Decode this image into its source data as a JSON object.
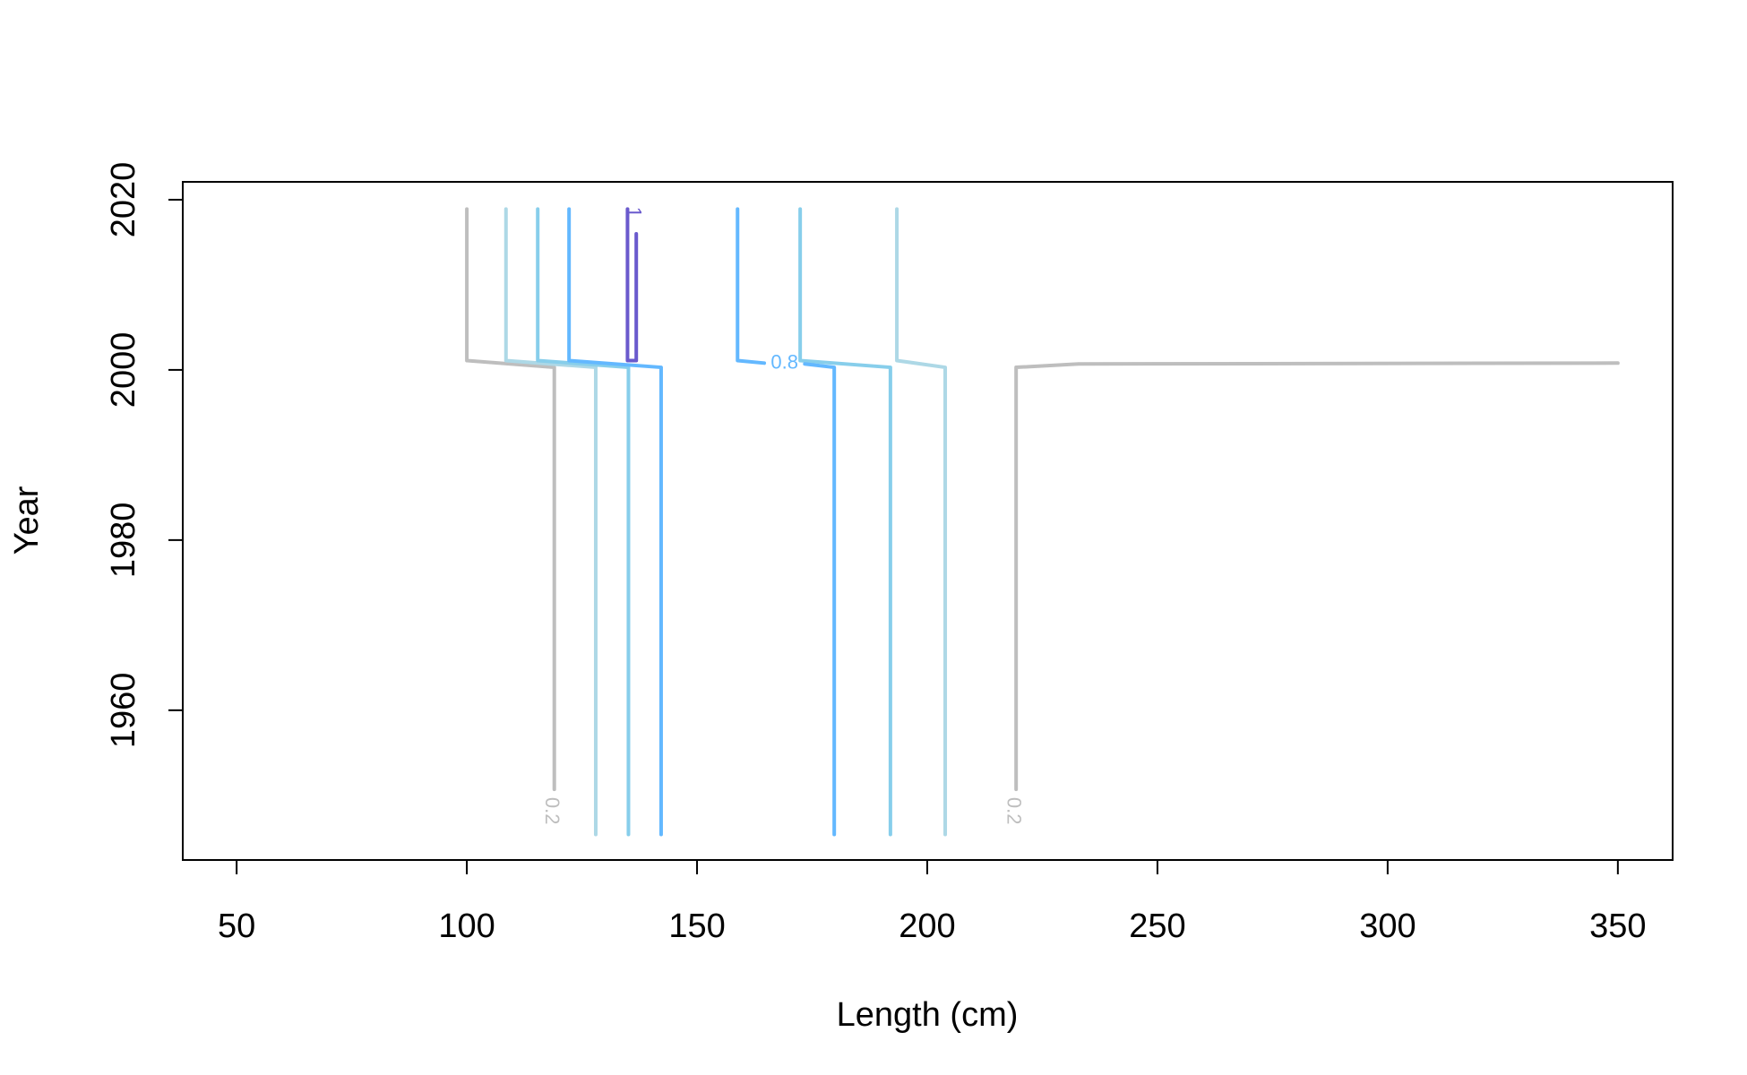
{
  "chart_data": {
    "type": "contour",
    "xlabel": "Length (cm)",
    "ylabel": "Year",
    "xlim": [
      38.3,
      361.9
    ],
    "ylim": [
      1942.4,
      2022.1
    ],
    "xticks": [
      50,
      100,
      150,
      200,
      250,
      300,
      350
    ],
    "yticks": [
      1960,
      1980,
      2000,
      2020
    ],
    "series": [
      {
        "color": "#bebebe",
        "label": "0.2",
        "x": [
          100,
          100,
          119,
          119
        ],
        "values": [
          2018.9,
          2001.1,
          2000.3,
          1950.7
        ]
      },
      {
        "color": "#bebebe",
        "label": "0.2",
        "x": [
          350,
          232.9,
          219.3,
          219.3
        ],
        "values": [
          2000.8,
          2000.7,
          2000.3,
          1950.7
        ]
      },
      {
        "color": "#add8e6",
        "x": [
          108.5,
          108.5,
          128,
          128
        ],
        "values": [
          2018.9,
          2001.1,
          2000.3,
          1945.4
        ]
      },
      {
        "color": "#add8e6",
        "x": [
          193.4,
          193.4,
          203.9,
          203.9
        ],
        "values": [
          2018.9,
          2001.1,
          2000.3,
          1945.4
        ]
      },
      {
        "color": "#87ceeb",
        "x": [
          115.4,
          115.4,
          135.1,
          135.1
        ],
        "values": [
          2018.9,
          2001.1,
          2000.3,
          1945.4
        ]
      },
      {
        "color": "#87ceeb",
        "x": [
          172.4,
          172.4,
          192,
          192
        ],
        "values": [
          2018.9,
          2001.1,
          2000.3,
          1945.4
        ]
      },
      {
        "color": "#63b8ff",
        "x": [
          122.2,
          122.2,
          142.2,
          142.2
        ],
        "values": [
          2018.9,
          2001.1,
          2000.3,
          1945.4
        ]
      },
      {
        "color": "#63b8ff",
        "label": "0.8",
        "x": [
          158.8,
          158.8,
          164.6,
          null,
          173.4,
          179.8,
          179.8
        ],
        "values": [
          2018.9,
          2001.1,
          2000.8,
          null,
          2000.7,
          2000.3,
          1945.4
        ]
      },
      {
        "color": "#6a5acd",
        "label": "1",
        "x": [
          134.9,
          134.9,
          136.8,
          136.8
        ],
        "values": [
          2018.9,
          2001.1,
          2001.1,
          2016.0
        ]
      }
    ]
  }
}
